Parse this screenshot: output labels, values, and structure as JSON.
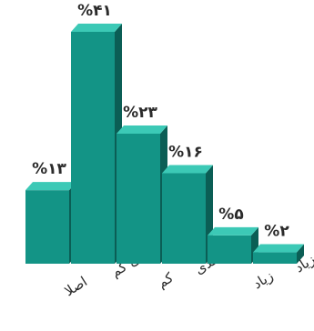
{
  "chart_data": {
    "type": "bar",
    "style": "3d",
    "direction": "rtl",
    "categories": [
      "خیلی زیاد",
      "زیاد",
      "تا حدی",
      "کم",
      "خیلی کم",
      "اصلا"
    ],
    "values": [
      2,
      5,
      16,
      23,
      41,
      13
    ],
    "data_labels": [
      "%۲",
      "%۵",
      "%۱۶",
      "%۲۳",
      "%۴۱",
      "%۱۳"
    ],
    "title": "",
    "xlabel": "",
    "ylabel": "",
    "ylim": [
      0,
      41
    ],
    "grid": false,
    "legend": "none",
    "colors": {
      "front": "#139486",
      "top": "#3cc9b6",
      "side": "#0b5e55",
      "text": "#2b2b2b"
    }
  }
}
